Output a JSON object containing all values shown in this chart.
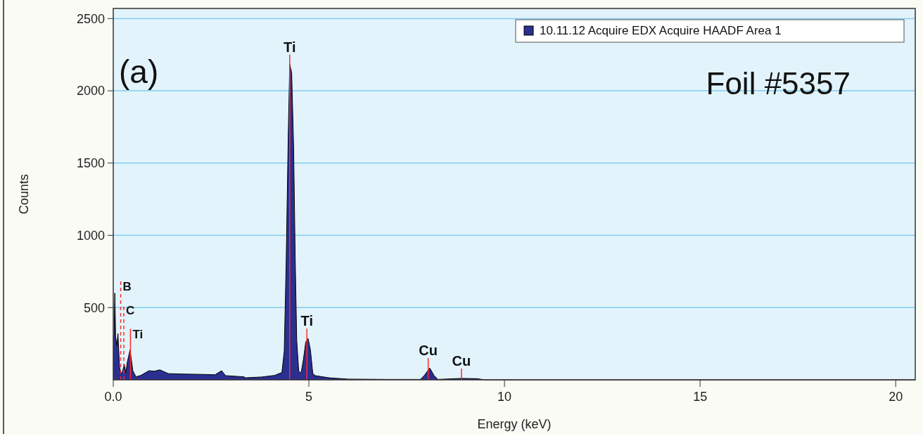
{
  "chart_data": {
    "type": "area",
    "xlabel": "Energy (keV)",
    "ylabel": "Counts",
    "annotations": [
      "(a)",
      "Foil #5357"
    ],
    "ref_lines": [
      {
        "axis": "x",
        "value": 0.19,
        "label": "B",
        "color": "#ff2a2a",
        "line_style": "dashed"
      },
      {
        "axis": "x",
        "value": 0.27,
        "label": "C",
        "color": "#ff2a2a",
        "line_style": "dashed"
      },
      {
        "axis": "x",
        "value": 0.44,
        "label": "Ti",
        "color": "#ff2a2a",
        "line_style": "solid"
      },
      {
        "axis": "x",
        "value": 4.51,
        "label": "Ti",
        "color": "#ff2a2a",
        "line_style": "solid"
      },
      {
        "axis": "x",
        "value": 4.95,
        "label": "Ti",
        "color": "#ff2a2a",
        "line_style": "solid"
      },
      {
        "axis": "x",
        "value": 8.05,
        "label": "Cu",
        "color": "#ff2a2a",
        "line_style": "solid"
      },
      {
        "axis": "x",
        "value": 8.9,
        "label": "Cu",
        "color": "#ff2a2a",
        "line_style": "solid"
      }
    ],
    "x": [
      0.0,
      0.02,
      0.04,
      0.06,
      0.09,
      0.12,
      0.16,
      0.2,
      0.24,
      0.28,
      0.32,
      0.36,
      0.43,
      0.5,
      0.58,
      0.7,
      0.91,
      1.05,
      1.19,
      1.41,
      1.8,
      2.25,
      2.6,
      2.77,
      2.87,
      3.34,
      3.38,
      3.8,
      4.13,
      4.25,
      4.31,
      4.37,
      4.42,
      4.47,
      4.51,
      4.56,
      4.61,
      4.65,
      4.69,
      4.74,
      4.8,
      4.86,
      4.92,
      4.98,
      5.04,
      5.1,
      5.16,
      5.52,
      6,
      7,
      7.85,
      7.95,
      8.09,
      8.2,
      8.3,
      8.9,
      9.3,
      9.5,
      12,
      20.5
    ],
    "series": [
      {
        "name": "10.11.12 Acquire EDX Acquire HAADF Area 1",
        "color": "#2b2f8f",
        "values": [
          300,
          303,
          600,
          300,
          236,
          320,
          90,
          43,
          60,
          110,
          50,
          125,
          207,
          63,
          21,
          30,
          63,
          60,
          69,
          43,
          40,
          38,
          35,
          63,
          29,
          21,
          14,
          20,
          31,
          45,
          50,
          198,
          816,
          1653,
          2183,
          2125,
          1611,
          848,
          270,
          63,
          45,
          141,
          262,
          286,
          207,
          45,
          29,
          14,
          5,
          3,
          3,
          30,
          82,
          30,
          3,
          10,
          8,
          0,
          0,
          0
        ]
      }
    ],
    "xlim": [
      0,
      20.5
    ],
    "xticks": [
      {
        "value": 0,
        "label": "0.0"
      },
      5,
      10,
      15,
      20
    ],
    "ylim": [
      0,
      2570
    ],
    "yticks": [
      500,
      1000,
      1500,
      2000,
      2500
    ],
    "grid": "y",
    "legend": "top right"
  }
}
